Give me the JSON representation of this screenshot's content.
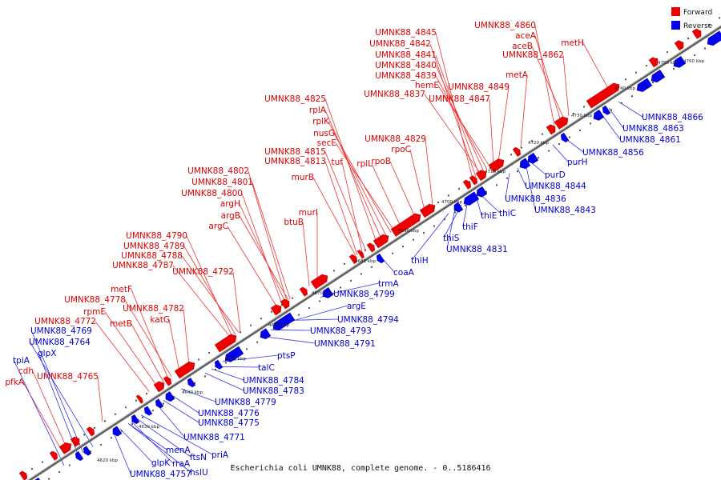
{
  "title": "Escherichia coli UMNK88, complete genome. - 0..5186416",
  "legend": [
    {
      "label": "Forward",
      "color": "#ee0000"
    },
    {
      "label": "Reverse",
      "color": "#0000ee"
    }
  ],
  "colors": {
    "forward": "#ee0000",
    "reverse": "#0000ee",
    "backbone": "#808080"
  },
  "ticks": [
    "4620 kbp",
    "4630 kbp",
    "4640 kbp",
    "4650 kbp",
    "4660 kbp",
    "4670 kbp",
    "4680 kbp",
    "4690 kbp",
    "4700 kbp",
    "4710 kbp",
    "4720 kbp",
    "4730 kbp",
    "4740 kbp",
    "4750 kbp",
    "4760 kbp"
  ],
  "forward_genes": [
    "UMNK88_4845",
    "UMNK88_4842",
    "UMNK88_4841",
    "UMNK88_4840",
    "UMNK88_4839",
    "hemE",
    "UMNK88_4849",
    "UMNK88_4837",
    "UMNK88_4847",
    "UMNK88_4860",
    "aceA",
    "aceB",
    "UMNK88_4862",
    "metH",
    "metA",
    "UMNK88_4825",
    "rplA",
    "rplK",
    "nusG",
    "secE",
    "UMNK88_4815",
    "tuf",
    "UMNK88_4813",
    "rplL",
    "rpoB",
    "UMNK88_4829",
    "rpoC",
    "UMNK88_4802",
    "UMNK88_4801",
    "murB",
    "UMNK88_4800",
    "argH",
    "murI",
    "argB",
    "btuB",
    "argC",
    "UMNK88_4790",
    "UMNK88_4789",
    "UMNK88_4788",
    "UMNK88_4787",
    "UMNK88_4792",
    "metF",
    "UMNK88_4778",
    "rpmE",
    "UMNK88_4782",
    "UMNK88_4772",
    "metB",
    "katG",
    "UMNK88_4765",
    "cdh",
    "pfkA"
  ],
  "reverse_genes": [
    "UMNK88_4866",
    "UMNK88_4863",
    "UMNK88_4861",
    "UMNK88_4856",
    "purH",
    "purD",
    "UMNK88_4844",
    "UMNK88_4836",
    "UMNK88_4843",
    "thiC",
    "thiE",
    "thiF",
    "thiS",
    "UMNK88_4831",
    "thiH",
    "coaA",
    "trmA",
    "UMNK88_4799",
    "argE",
    "UMNK88_4794",
    "UMNK88_4793",
    "UMNK88_4791",
    "ptsP",
    "talC",
    "UMNK88_4784",
    "UMNK88_4783",
    "UMNK88_4779",
    "UMNK88_4776",
    "UMNK88_4775",
    "UMNK88_4771",
    "priA",
    "ftsN",
    "menA",
    "rraA",
    "hslU",
    "glpK",
    "UMNK88_4757",
    "UMNK88_4769",
    "UMNK88_4764",
    "glpX",
    "tpiA"
  ]
}
